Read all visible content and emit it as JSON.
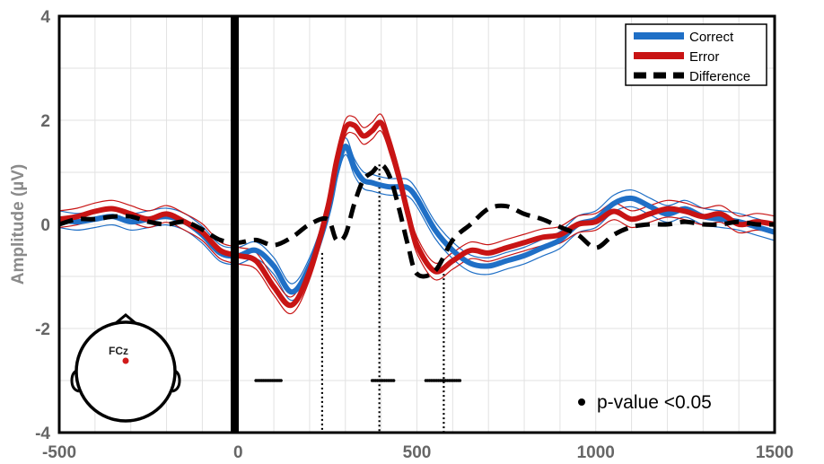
{
  "chart_data": {
    "type": "line",
    "title": "",
    "xlabel": "",
    "ylabel": "Amplitude (µV)",
    "xlim": [
      -500,
      1500
    ],
    "ylim": [
      -4,
      4
    ],
    "x_ticks": [
      "-500",
      "0",
      "500",
      "1000",
      "1500"
    ],
    "y_ticks": [
      "4",
      "2",
      "0",
      "-2",
      "-4"
    ],
    "grid": true,
    "legend_position": "top-right",
    "series": [
      {
        "name": "Correct",
        "color": "#1f6fc6",
        "style": "solid",
        "x": [
          -500,
          -450,
          -400,
          -350,
          -300,
          -250,
          -200,
          -150,
          -100,
          -50,
          0,
          50,
          100,
          150,
          200,
          250,
          275,
          300,
          325,
          350,
          375,
          400,
          425,
          450,
          475,
          500,
          550,
          600,
          650,
          700,
          750,
          800,
          850,
          900,
          950,
          1000,
          1050,
          1100,
          1150,
          1200,
          1250,
          1300,
          1350,
          1400,
          1450,
          1500
        ],
        "y": [
          0.1,
          0.05,
          0.1,
          0.15,
          0.05,
          0.1,
          0.15,
          0.05,
          -0.2,
          -0.55,
          -0.6,
          -0.5,
          -0.8,
          -1.3,
          -0.8,
          0.2,
          1.0,
          1.5,
          1.1,
          0.85,
          0.8,
          0.75,
          0.72,
          0.72,
          0.7,
          0.5,
          -0.1,
          -0.5,
          -0.75,
          -0.8,
          -0.7,
          -0.6,
          -0.45,
          -0.3,
          0.0,
          0.1,
          0.4,
          0.5,
          0.35,
          0.2,
          0.3,
          0.15,
          0.1,
          0.05,
          -0.05,
          -0.15
        ]
      },
      {
        "name": "Error",
        "color": "#c81414",
        "style": "solid",
        "x": [
          -500,
          -450,
          -400,
          -350,
          -300,
          -250,
          -200,
          -150,
          -100,
          -50,
          0,
          50,
          100,
          150,
          200,
          250,
          275,
          300,
          325,
          350,
          375,
          400,
          425,
          450,
          475,
          500,
          550,
          600,
          650,
          700,
          750,
          800,
          850,
          900,
          950,
          1000,
          1050,
          1100,
          1150,
          1200,
          1250,
          1300,
          1350,
          1400,
          1450,
          1500
        ],
        "y": [
          0.1,
          0.15,
          0.25,
          0.3,
          0.2,
          0.1,
          0.2,
          0.05,
          -0.15,
          -0.5,
          -0.6,
          -0.7,
          -1.2,
          -1.55,
          -0.9,
          0.3,
          1.2,
          1.85,
          1.9,
          1.7,
          1.8,
          1.95,
          1.5,
          0.9,
          0.2,
          -0.4,
          -0.9,
          -0.7,
          -0.5,
          -0.55,
          -0.45,
          -0.35,
          -0.25,
          -0.2,
          0.0,
          0.05,
          0.25,
          0.1,
          0.2,
          0.3,
          0.25,
          0.15,
          0.2,
          0.0,
          0.05,
          0.0
        ]
      },
      {
        "name": "Difference",
        "color": "#000000",
        "style": "dashed",
        "x": [
          -500,
          -450,
          -400,
          -350,
          -300,
          -250,
          -200,
          -150,
          -100,
          -50,
          0,
          50,
          100,
          150,
          200,
          250,
          275,
          300,
          325,
          350,
          375,
          400,
          425,
          450,
          475,
          500,
          550,
          600,
          650,
          700,
          750,
          800,
          850,
          900,
          950,
          1000,
          1050,
          1100,
          1150,
          1200,
          1250,
          1300,
          1350,
          1400,
          1450,
          1500
        ],
        "y": [
          0.0,
          0.1,
          0.1,
          0.15,
          0.15,
          0.05,
          0.0,
          0.05,
          -0.1,
          -0.3,
          -0.35,
          -0.3,
          -0.4,
          -0.25,
          0.0,
          0.1,
          -0.3,
          -0.2,
          0.4,
          0.85,
          1.0,
          1.15,
          0.9,
          0.3,
          -0.4,
          -0.95,
          -0.9,
          -0.3,
          0.0,
          0.3,
          0.35,
          0.2,
          0.1,
          -0.05,
          -0.2,
          -0.45,
          -0.2,
          -0.05,
          0.0,
          0.0,
          0.05,
          0.0,
          0.0,
          0.05,
          0.0,
          0.0
        ]
      }
    ],
    "significant_timepoints": [
      50,
      55,
      60,
      65,
      70,
      75,
      80,
      85,
      90,
      95,
      100,
      105,
      110,
      115,
      120,
      375,
      380,
      385,
      390,
      395,
      400,
      405,
      410,
      415,
      420,
      425,
      430,
      435,
      525,
      530,
      535,
      540,
      545,
      550,
      555,
      560,
      565,
      570,
      575,
      580,
      585,
      590,
      595,
      600,
      605,
      610,
      615,
      620
    ],
    "vertical_markers": [
      {
        "x": 235,
        "y": -0.55
      },
      {
        "x": 395,
        "y": 1.15
      },
      {
        "x": 575,
        "y": -0.95
      }
    ],
    "annotations": {
      "pvalue_label": "p-value <0.05",
      "electrode": "FCz"
    }
  }
}
